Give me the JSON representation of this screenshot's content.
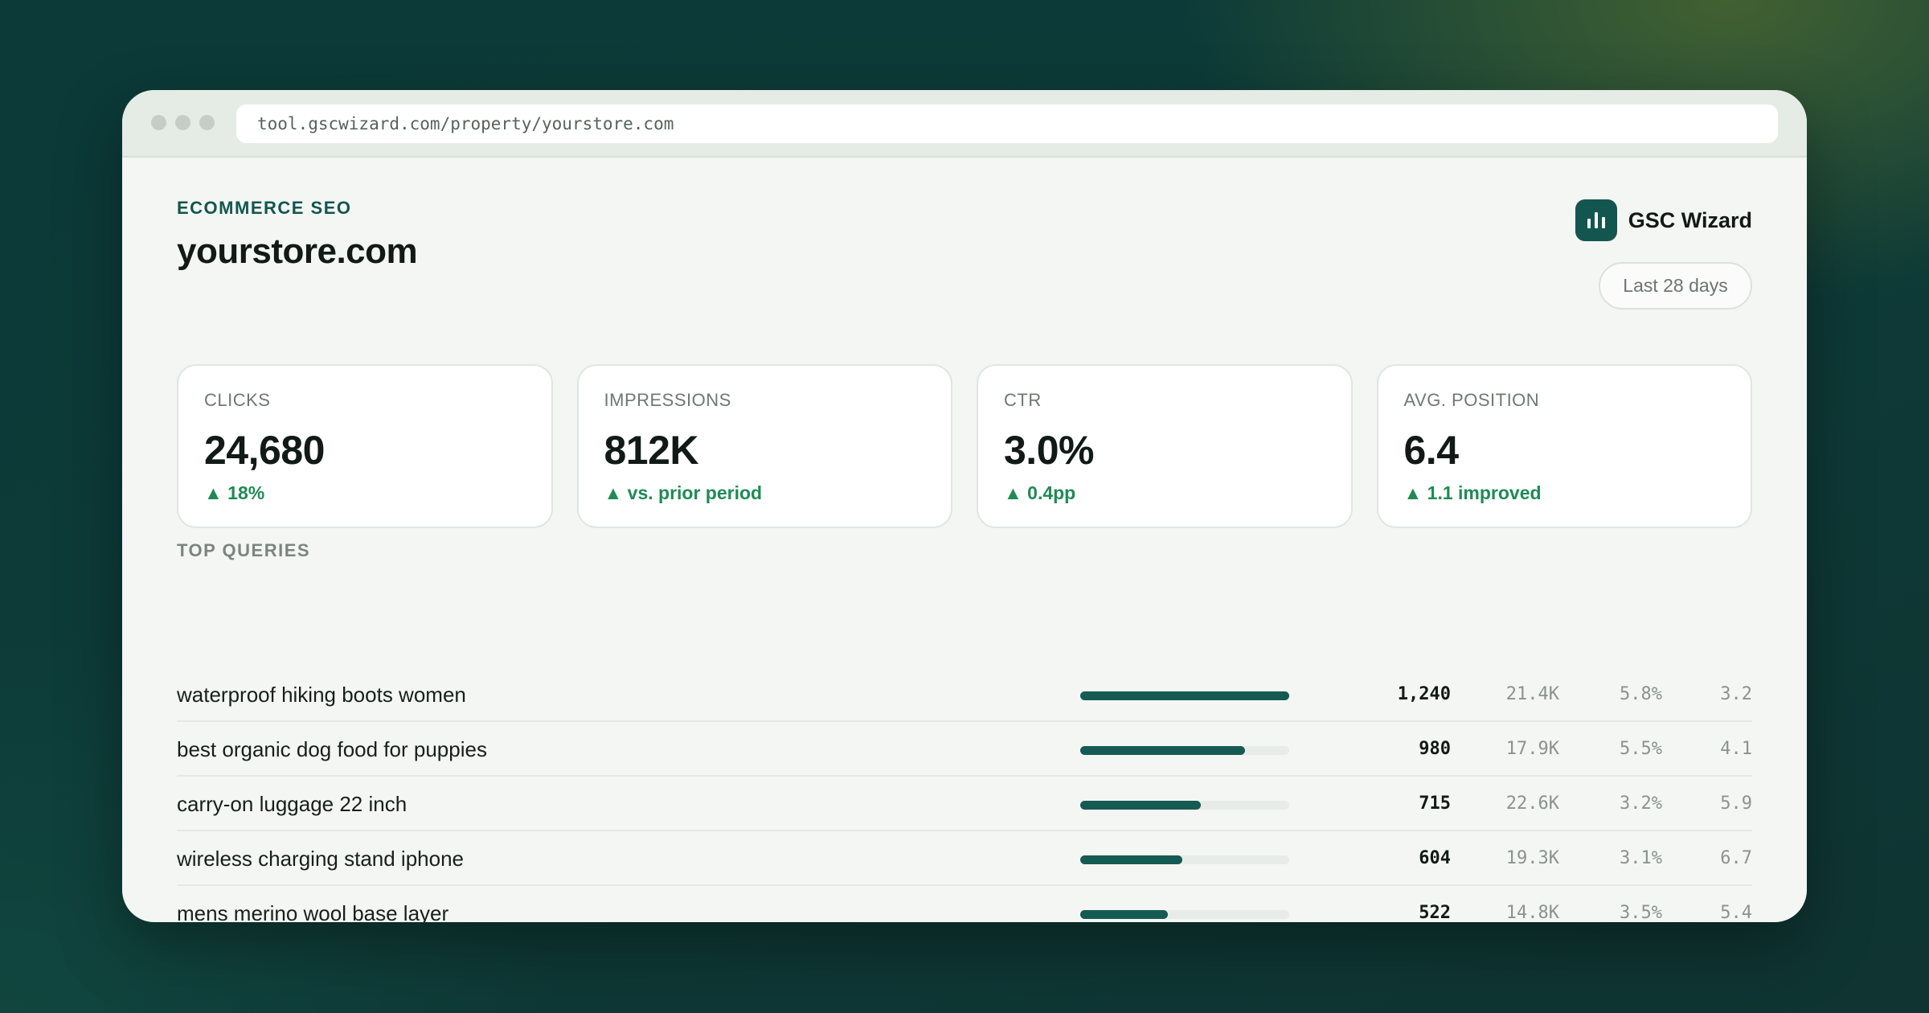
{
  "browser": {
    "url": "tool.gscwizard.com/property/yourstore.com"
  },
  "header": {
    "kicker": "ECOMMERCE SEO",
    "site": "yourstore.com",
    "brand_name": "GSC Wizard",
    "brand_icon": "bar-chart-icon",
    "date_range": "Last 28 days"
  },
  "metrics": [
    {
      "label": "CLICKS",
      "value": "24,680",
      "delta": "▲ 18%"
    },
    {
      "label": "IMPRESSIONS",
      "value": "812K",
      "delta": "▲ vs. prior period"
    },
    {
      "label": "CTR",
      "value": "3.0%",
      "delta": "▲ 0.4pp"
    },
    {
      "label": "AVG. POSITION",
      "value": "6.4",
      "delta": "▲ 1.1 improved"
    }
  ],
  "top_queries": {
    "title": "TOP QUERIES",
    "rows": [
      {
        "query": "waterproof hiking boots women",
        "bar": 1.0,
        "clicks": "1,240",
        "impressions": "21.4K",
        "ctr": "5.8%",
        "position": "3.2"
      },
      {
        "query": "best organic dog food for puppies",
        "bar": 0.79,
        "clicks": "980",
        "impressions": "17.9K",
        "ctr": "5.5%",
        "position": "4.1"
      },
      {
        "query": "carry-on luggage 22 inch",
        "bar": 0.577,
        "clicks": "715",
        "impressions": "22.6K",
        "ctr": "3.2%",
        "position": "5.9"
      },
      {
        "query": "wireless charging stand iphone",
        "bar": 0.487,
        "clicks": "604",
        "impressions": "19.3K",
        "ctr": "3.1%",
        "position": "6.7"
      },
      {
        "query": "mens merino wool base layer",
        "bar": 0.421,
        "clicks": "522",
        "impressions": "14.8K",
        "ctr": "3.5%",
        "position": "5.4"
      }
    ]
  },
  "colors": {
    "accent": "#12564f",
    "positive": "#1f8a55"
  }
}
